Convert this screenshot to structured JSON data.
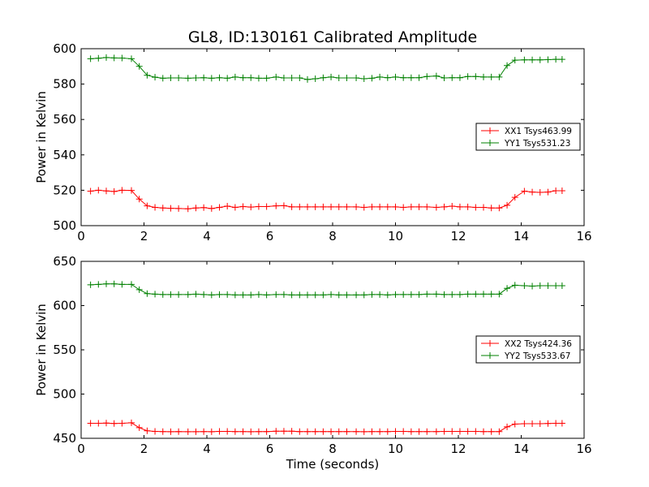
{
  "chart_data": [
    {
      "type": "line",
      "title": "GL8, ID:130161 Calibrated Amplitude",
      "xlabel": "",
      "ylabel": "Power in Kelvin",
      "xlim": [
        0,
        16
      ],
      "ylim": [
        500,
        600
      ],
      "xticks": [
        0,
        2,
        4,
        6,
        8,
        10,
        12,
        14,
        16
      ],
      "yticks": [
        500,
        520,
        540,
        560,
        580,
        600
      ],
      "grid": false,
      "legend": "right",
      "x": [
        0.3,
        0.55,
        0.8,
        1.05,
        1.3,
        1.6,
        1.85,
        2.1,
        2.35,
        2.6,
        2.85,
        3.1,
        3.4,
        3.65,
        3.9,
        4.15,
        4.4,
        4.65,
        4.9,
        5.15,
        5.4,
        5.65,
        5.9,
        6.2,
        6.45,
        6.7,
        6.95,
        7.2,
        7.45,
        7.7,
        7.95,
        8.2,
        8.45,
        8.75,
        9.0,
        9.25,
        9.5,
        9.75,
        10.0,
        10.25,
        10.5,
        10.75,
        11.0,
        11.3,
        11.55,
        11.8,
        12.05,
        12.3,
        12.55,
        12.8,
        13.05,
        13.3,
        13.55,
        13.8,
        14.1,
        14.35,
        14.6,
        14.85,
        15.1,
        15.3
      ],
      "series": [
        {
          "name": "XX1 Tsys463.99",
          "color": "#ff0000",
          "values": [
            519.5,
            520.0,
            519.6,
            519.3,
            520.0,
            519.9,
            515.0,
            511.2,
            510.3,
            510.0,
            509.8,
            509.7,
            509.5,
            510.0,
            510.2,
            509.7,
            510.3,
            511.0,
            510.3,
            510.8,
            510.5,
            510.8,
            510.8,
            511.2,
            511.3,
            510.6,
            510.6,
            510.6,
            510.6,
            510.6,
            510.6,
            510.6,
            510.6,
            510.6,
            510.3,
            510.6,
            510.6,
            510.6,
            510.6,
            510.3,
            510.6,
            510.6,
            510.6,
            510.3,
            510.6,
            511.0,
            510.6,
            510.6,
            510.3,
            510.3,
            510.0,
            510.0,
            511.5,
            516.0,
            519.5,
            519.0,
            518.8,
            519.0,
            519.7,
            519.7
          ]
        },
        {
          "name": "YY1 Tsys531.23",
          "color": "#008000",
          "values": [
            594.3,
            594.6,
            595.0,
            594.8,
            594.7,
            594.3,
            590.0,
            585.0,
            583.9,
            583.3,
            583.5,
            583.5,
            583.3,
            583.5,
            583.6,
            583.3,
            583.6,
            583.3,
            584.0,
            583.6,
            583.6,
            583.3,
            583.3,
            584.0,
            583.5,
            583.5,
            583.5,
            582.6,
            583.0,
            583.6,
            584.0,
            583.5,
            583.5,
            583.5,
            583.0,
            583.3,
            584.0,
            583.6,
            584.0,
            583.6,
            583.6,
            583.6,
            584.3,
            584.6,
            583.5,
            583.6,
            583.6,
            584.3,
            584.3,
            584.0,
            584.0,
            584.0,
            590.5,
            593.5,
            593.7,
            593.7,
            593.7,
            593.8,
            594.0,
            594.0
          ]
        }
      ]
    },
    {
      "type": "line",
      "title": "",
      "xlabel": "Time (seconds)",
      "ylabel": "Power in Kelvin",
      "xlim": [
        0,
        16
      ],
      "ylim": [
        450,
        650
      ],
      "xticks": [
        0,
        2,
        4,
        6,
        8,
        10,
        12,
        14,
        16
      ],
      "yticks": [
        450,
        500,
        550,
        600,
        650
      ],
      "grid": false,
      "legend": "right",
      "x": [
        0.3,
        0.55,
        0.8,
        1.05,
        1.3,
        1.6,
        1.85,
        2.1,
        2.35,
        2.6,
        2.85,
        3.1,
        3.4,
        3.65,
        3.9,
        4.15,
        4.4,
        4.65,
        4.9,
        5.15,
        5.4,
        5.65,
        5.9,
        6.2,
        6.45,
        6.7,
        6.95,
        7.2,
        7.45,
        7.7,
        7.95,
        8.2,
        8.45,
        8.75,
        9.0,
        9.25,
        9.5,
        9.75,
        10.0,
        10.25,
        10.5,
        10.75,
        11.0,
        11.3,
        11.55,
        11.8,
        12.05,
        12.3,
        12.55,
        12.8,
        13.05,
        13.3,
        13.55,
        13.8,
        14.1,
        14.35,
        14.6,
        14.85,
        15.1,
        15.3
      ],
      "series": [
        {
          "name": "XX2 Tsys424.36",
          "color": "#ff0000",
          "values": [
            467.0,
            467.0,
            467.2,
            466.8,
            467.0,
            467.5,
            462.0,
            458.5,
            457.8,
            457.6,
            457.4,
            457.6,
            457.4,
            457.4,
            457.6,
            457.4,
            457.8,
            457.8,
            457.6,
            457.6,
            457.4,
            457.6,
            457.6,
            458.0,
            458.0,
            458.0,
            457.6,
            457.6,
            457.6,
            457.6,
            457.6,
            457.6,
            457.6,
            457.6,
            457.4,
            457.6,
            457.6,
            457.6,
            457.8,
            457.8,
            457.6,
            457.6,
            457.6,
            457.6,
            457.8,
            457.8,
            457.8,
            457.8,
            457.8,
            457.6,
            457.6,
            457.6,
            463.0,
            466.0,
            466.5,
            466.5,
            466.5,
            466.8,
            467.0,
            467.0
          ]
        },
        {
          "name": "YY2 Tsys533.67",
          "color": "#008000",
          "values": [
            623.5,
            624.0,
            624.5,
            624.5,
            624.0,
            624.0,
            618.0,
            613.5,
            613.0,
            612.5,
            612.5,
            612.5,
            612.5,
            613.0,
            612.5,
            612.0,
            612.5,
            612.5,
            612.0,
            612.0,
            612.0,
            612.5,
            612.0,
            612.5,
            612.5,
            612.0,
            612.0,
            612.0,
            612.0,
            612.0,
            612.5,
            612.0,
            612.0,
            612.0,
            612.0,
            612.5,
            612.5,
            612.0,
            612.5,
            612.5,
            612.5,
            612.5,
            613.0,
            613.0,
            612.5,
            612.5,
            612.5,
            613.0,
            613.0,
            613.0,
            613.0,
            613.0,
            619.5,
            623.0,
            622.5,
            622.0,
            622.5,
            622.5,
            622.5,
            622.5
          ]
        }
      ]
    }
  ]
}
